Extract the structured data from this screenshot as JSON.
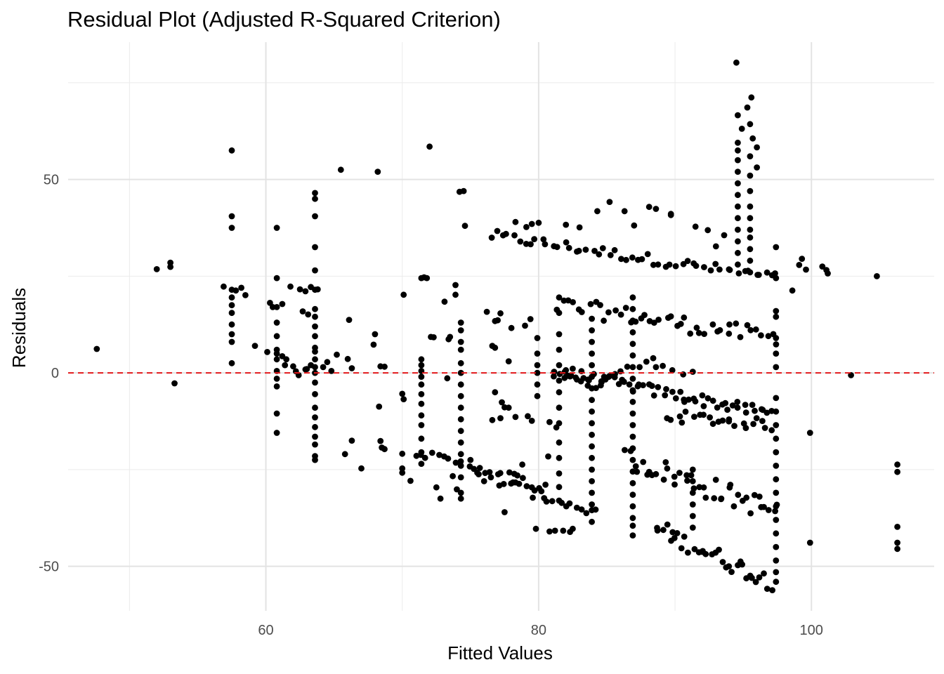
{
  "chart_data": {
    "type": "scatter",
    "title": "Residual Plot (Adjusted R-Squared Criterion)",
    "xlabel": "Fitted Values",
    "ylabel": "Residuals",
    "xlim": [
      45.5,
      109
    ],
    "ylim": [
      -61.5,
      85.5
    ],
    "x_ticks": [
      60,
      80,
      100
    ],
    "x_tick_labels": [
      "60",
      "80",
      "100"
    ],
    "y_ticks": [
      -50,
      0,
      50
    ],
    "y_tick_labels": [
      "-50",
      "0",
      "50"
    ],
    "x_minor_gridlines": [
      50,
      70,
      90
    ],
    "y_minor_gridlines": [
      -25,
      25,
      75
    ],
    "grid": true,
    "reference_line": {
      "y": 0,
      "style": "dashed",
      "color": "#e41a1c"
    },
    "point_color": "#000000",
    "columns": [
      {
        "x": 57.5,
        "ys": [
          57.5,
          40.5,
          37.5,
          21.5,
          19.5,
          17.5,
          15.5,
          12.5,
          10,
          8,
          2.5
        ]
      },
      {
        "x": 60.8,
        "ys": [
          37.5,
          24.5,
          17,
          13,
          9.5,
          6,
          5,
          3.5,
          0.5,
          -1.5,
          -3.5,
          -10.5,
          -15.5
        ]
      },
      {
        "x": 63.6,
        "ys": [
          46.5,
          45,
          40.5,
          32.5,
          26.5,
          21.5,
          16.5,
          14.5,
          12,
          9.5,
          6.5,
          5.5,
          3.5,
          1.5,
          0,
          -2.5,
          -5.5,
          -9,
          -11.5,
          -14,
          -16.5,
          -18.5,
          -21.5,
          -22.5
        ]
      },
      {
        "x": 71.4,
        "ys": [
          24.5,
          3.5,
          2,
          0.5,
          -1,
          -3,
          -5.5,
          -8,
          -11,
          -13.5,
          -17,
          -20.5,
          -23.5
        ]
      },
      {
        "x": 74.3,
        "ys": [
          13,
          11,
          8,
          6,
          2.5,
          0,
          -3,
          -6,
          -9,
          -12,
          -15,
          -18,
          -21,
          -24,
          -27,
          -31,
          -32.5
        ]
      },
      {
        "x": 79.9,
        "ys": [
          9,
          5,
          2,
          0,
          -3,
          -6
        ]
      },
      {
        "x": 81.5,
        "ys": [
          19.5,
          15.5,
          10,
          6,
          2,
          -2,
          -5,
          -9,
          -13,
          -18,
          -22,
          -26,
          -29.5,
          -33
        ]
      },
      {
        "x": 83.9,
        "ys": [
          14,
          11,
          8,
          5,
          2,
          -1,
          -4,
          -7,
          -10,
          -13,
          -16,
          -19,
          -22,
          -25,
          -28,
          -31,
          -34,
          -35.5,
          -38.5
        ]
      },
      {
        "x": 86.9,
        "ys": [
          19.5,
          16.5,
          13.5,
          10.5,
          7.5,
          4.5,
          1.5,
          -1.5,
          -4.5,
          -7.5,
          -10.5,
          -13.5,
          -16.5,
          -19.5,
          -22.5,
          -25.5,
          -28.5,
          -31.5,
          -34.5,
          -37.5,
          -39.5,
          -42
        ]
      },
      {
        "x": 91.3,
        "ys": [
          -25,
          -28,
          -31,
          -34,
          -37,
          -40
        ]
      },
      {
        "x": 94.6,
        "ys": [
          59.5,
          57.5,
          55,
          52,
          49,
          46,
          43,
          40,
          37,
          34,
          31,
          28
        ]
      },
      {
        "x": 95.5,
        "ys": [
          56,
          51,
          47,
          43,
          40,
          37,
          35,
          32,
          29,
          26
        ]
      },
      {
        "x": 97.4,
        "ys": [
          32.5,
          24.5,
          16,
          14.5,
          9,
          5,
          1.5,
          -6.5,
          -10,
          -13.5,
          -17,
          -20.5,
          -24,
          -27.5,
          -31,
          -34.5,
          -38,
          -41.5,
          -45,
          -48.5,
          -51.5,
          -54
        ]
      }
    ],
    "bands": [
      {
        "x0": 76.5,
        "x1": 97.5,
        "y0": 35.5,
        "y1": 24.5,
        "n": 52,
        "jitter": 2.8
      },
      {
        "x0": 81.5,
        "x1": 97.5,
        "y0": 17.5,
        "y1": 9.0,
        "n": 44,
        "jitter": 4.5
      },
      {
        "x0": 81.0,
        "x1": 97.0,
        "y0": 0.5,
        "y1": -10.5,
        "n": 58,
        "jitter": 3.0
      },
      {
        "x0": 89.5,
        "x1": 97.0,
        "y0": -11.0,
        "y1": -13.5,
        "n": 22,
        "jitter": 3.0
      },
      {
        "x0": 86.5,
        "x1": 97.5,
        "y0": -22,
        "y1": -36,
        "n": 40,
        "jitter": 6.0
      },
      {
        "x0": 88.5,
        "x1": 97.0,
        "y0": -40,
        "y1": -54,
        "n": 34,
        "jitter": 4.5
      },
      {
        "x0": 71.0,
        "x1": 79.0,
        "y0": -20.5,
        "y1": -27.5,
        "n": 20,
        "jitter": 2.0
      },
      {
        "x0": 77.0,
        "x1": 84.0,
        "y0": -28,
        "y1": -36,
        "n": 18,
        "jitter": 3.0
      }
    ],
    "points": [
      [
        47.6,
        6.2
      ],
      [
        52.0,
        26.8
      ],
      [
        53.0,
        28.5
      ],
      [
        53.0,
        27.4
      ],
      [
        53.3,
        -2.7
      ],
      [
        56.9,
        22.3
      ],
      [
        57.8,
        21.3
      ],
      [
        58.2,
        22
      ],
      [
        58.5,
        20.1
      ],
      [
        59.2,
        7
      ],
      [
        60.1,
        5.4
      ],
      [
        60.3,
        18.1
      ],
      [
        60.5,
        17
      ],
      [
        61.2,
        17.8
      ],
      [
        61.2,
        4.3
      ],
      [
        61.4,
        2
      ],
      [
        61.5,
        3.5
      ],
      [
        61.8,
        22.3
      ],
      [
        62.0,
        1.7
      ],
      [
        62.2,
        0.4
      ],
      [
        62.4,
        -0.6
      ],
      [
        62.5,
        21.6
      ],
      [
        62.7,
        15.9
      ],
      [
        62.9,
        0.9
      ],
      [
        62.9,
        21.1
      ],
      [
        63.1,
        15.1
      ],
      [
        63.0,
        1
      ],
      [
        63.3,
        22.2
      ],
      [
        63.3,
        2
      ],
      [
        63.8,
        21.6
      ],
      [
        64.2,
        1.5
      ],
      [
        64.5,
        2.8
      ],
      [
        64.8,
        0.5
      ],
      [
        65.2,
        4.7
      ],
      [
        65.5,
        52.5
      ],
      [
        65.8,
        -21
      ],
      [
        66.0,
        3.6
      ],
      [
        66.1,
        13.7
      ],
      [
        66.3,
        1.2
      ],
      [
        66.3,
        -17.5
      ],
      [
        67.0,
        -24.7
      ],
      [
        67.9,
        7.3
      ],
      [
        68.0,
        10
      ],
      [
        68.2,
        52
      ],
      [
        68.4,
        1.7
      ],
      [
        68.7,
        1.6
      ],
      [
        68.3,
        -8.7
      ],
      [
        68.4,
        -17.6
      ],
      [
        68.5,
        -19.3
      ],
      [
        68.7,
        -19.7
      ],
      [
        70.0,
        -5.4
      ],
      [
        70.1,
        -6.8
      ],
      [
        70.1,
        20.2
      ],
      [
        70.0,
        -20.9
      ],
      [
        70.0,
        -24.7
      ],
      [
        70.0,
        -25.8
      ],
      [
        70.6,
        -27.9
      ],
      [
        71.6,
        24.7
      ],
      [
        71.8,
        24.5
      ],
      [
        72.0,
        58.5
      ],
      [
        72.1,
        9.3
      ],
      [
        72.3,
        9.2
      ],
      [
        72.5,
        -29.6
      ],
      [
        72.8,
        -32.5
      ],
      [
        73.1,
        18.4
      ],
      [
        73.3,
        -1.4
      ],
      [
        73.4,
        8.7
      ],
      [
        73.5,
        9.3
      ],
      [
        73.7,
        -26.7
      ],
      [
        73.9,
        22.7
      ],
      [
        74.0,
        -30.1
      ],
      [
        73.9,
        20.2
      ],
      [
        74.2,
        46.8
      ],
      [
        74.5,
        47
      ],
      [
        74.6,
        38
      ],
      [
        75.0,
        -22.5
      ],
      [
        75.5,
        -25.8
      ],
      [
        75.6,
        -26.2
      ],
      [
        76.0,
        -28
      ],
      [
        76.2,
        15.8
      ],
      [
        76.5,
        -27
      ],
      [
        76.6,
        7
      ],
      [
        76.8,
        6.5
      ],
      [
        76.8,
        13.4
      ],
      [
        76.8,
        -5
      ],
      [
        76.6,
        -12.2
      ],
      [
        77.0,
        13.6
      ],
      [
        77.2,
        -11.7
      ],
      [
        77.2,
        15.4
      ],
      [
        77.3,
        -7.6
      ],
      [
        77.5,
        -8.9
      ],
      [
        77.5,
        -36
      ],
      [
        77.8,
        -9
      ],
      [
        77.8,
        3
      ],
      [
        78.0,
        11.6
      ],
      [
        78.3,
        -11.4
      ],
      [
        78.3,
        -28.3
      ],
      [
        78.8,
        -23.7
      ],
      [
        79.0,
        12.2
      ],
      [
        79.4,
        13.9
      ],
      [
        79.2,
        -11.2
      ],
      [
        79.5,
        -12.4
      ],
      [
        79.5,
        -29.6
      ],
      [
        79.7,
        -30.4
      ],
      [
        79.8,
        -40.3
      ],
      [
        80.2,
        -30.6
      ],
      [
        80.5,
        -28.9
      ],
      [
        80.8,
        -41
      ],
      [
        81.2,
        -40.8
      ],
      [
        81.8,
        -40.8
      ],
      [
        82.5,
        -40.3
      ],
      [
        82.3,
        -41.1
      ],
      [
        80.8,
        -12.7
      ],
      [
        81.3,
        -14.1
      ],
      [
        80.7,
        -21.6
      ],
      [
        81.9,
        -1.3
      ],
      [
        82.0,
        0.7
      ],
      [
        82.5,
        1.1
      ],
      [
        82.3,
        -0.9
      ],
      [
        82.8,
        -1.7
      ],
      [
        83.1,
        -2.2
      ],
      [
        83.6,
        -3.3
      ],
      [
        84.2,
        -3.9
      ],
      [
        84.6,
        -2.2
      ],
      [
        84.9,
        -1.7
      ],
      [
        85.2,
        -0.8
      ],
      [
        85.6,
        -0.3
      ],
      [
        86.0,
        0.4
      ],
      [
        86.5,
        1.6
      ],
      [
        87.4,
        1.5
      ],
      [
        87.9,
        2.9
      ],
      [
        88.4,
        3.8
      ],
      [
        88.6,
        1.5
      ],
      [
        89.1,
        1.8
      ],
      [
        89.8,
        0.7
      ],
      [
        90.6,
        -0.4
      ],
      [
        91.3,
        0.3
      ],
      [
        85.2,
        44.2
      ],
      [
        86.3,
        41.8
      ],
      [
        87.0,
        38.1
      ],
      [
        88.1,
        42.9
      ],
      [
        88.6,
        42.4
      ],
      [
        89.7,
        41.1
      ],
      [
        89.7,
        40.8
      ],
      [
        91.5,
        37.8
      ],
      [
        92.4,
        36.9
      ],
      [
        93.6,
        35.6
      ],
      [
        93.0,
        32.7
      ],
      [
        84.3,
        41.8
      ],
      [
        83.0,
        37.6
      ],
      [
        82.0,
        38.3
      ],
      [
        80.0,
        38.8
      ],
      [
        79.5,
        38.5
      ],
      [
        78.3,
        39
      ],
      [
        79.1,
        37.7
      ],
      [
        98.6,
        21.3
      ],
      [
        99.1,
        27.9
      ],
      [
        99.3,
        29.5
      ],
      [
        99.6,
        26.7
      ],
      [
        100.8,
        27.5
      ],
      [
        101.1,
        26.6
      ],
      [
        101.2,
        25.7
      ],
      [
        104.8,
        25
      ],
      [
        99.9,
        -15.5
      ],
      [
        99.9,
        -43.9
      ],
      [
        102.9,
        -0.6
      ],
      [
        106.3,
        -23.7
      ],
      [
        106.3,
        -25.6
      ],
      [
        106.3,
        -39.8
      ],
      [
        106.3,
        -43.9
      ],
      [
        106.3,
        -45.5
      ],
      [
        95.6,
        71.2
      ],
      [
        95.3,
        68.6
      ],
      [
        94.6,
        66.6
      ],
      [
        94.5,
        80.2
      ],
      [
        95.5,
        64.3
      ],
      [
        95.7,
        60.6
      ],
      [
        96.0,
        58.3
      ],
      [
        94.9,
        63.1
      ],
      [
        96.0,
        53.1
      ]
    ]
  }
}
